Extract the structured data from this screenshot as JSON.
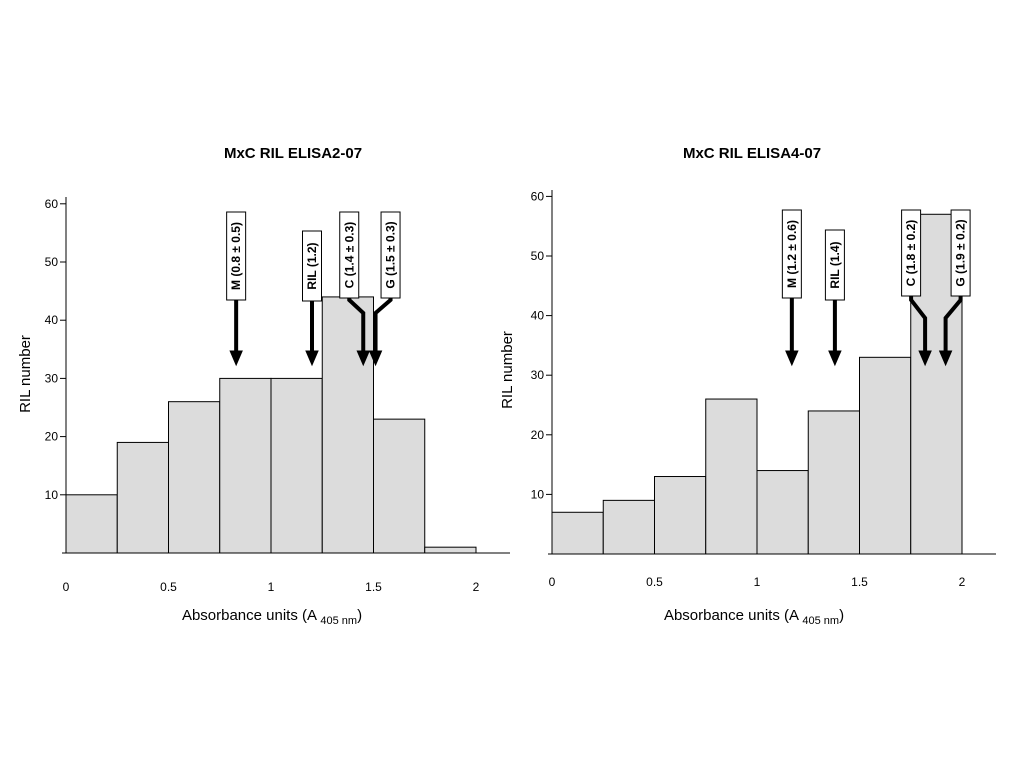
{
  "chart_data": [
    {
      "type": "bar",
      "title": "MxC RIL ELISA2-07",
      "xlabel": "Absorbance units (A",
      "xlabel_sub": "405 nm",
      "xlabel_close": ")",
      "ylabel": "RIL number",
      "xlim": [
        0,
        2.2
      ],
      "ylim": [
        0,
        60
      ],
      "x_ticks": [
        0,
        0.5,
        1,
        1.5,
        2
      ],
      "x_tick_labels": [
        "0",
        "0.5",
        "1",
        "1.5",
        "2"
      ],
      "y_ticks": [
        10,
        20,
        30,
        40,
        50,
        60
      ],
      "y_tick_labels": [
        "10",
        "20",
        "30",
        "40",
        "50",
        "60"
      ],
      "bin_edges": [
        0,
        0.25,
        0.5,
        0.75,
        1.0,
        1.25,
        1.5,
        1.75,
        2.0
      ],
      "values": [
        10,
        19,
        26,
        30,
        30,
        44,
        23,
        1
      ],
      "bar_color": "#dcdcdc",
      "annotations": [
        {
          "label": "M (0.8 ± 0.5)",
          "x": 0.83
        },
        {
          "label": "RIL (1.2)",
          "x": 1.2
        },
        {
          "label": "C (1.4 ± 0.3)",
          "x": 1.45
        },
        {
          "label": "G (1.5 ± 0.3)",
          "x": 1.51
        }
      ]
    },
    {
      "type": "bar",
      "title": "MxC RIL ELISA4-07",
      "xlabel": "Absorbance units (A",
      "xlabel_sub": "405 nm",
      "xlabel_close": ")",
      "ylabel": "RIL number",
      "xlim": [
        0,
        2.2
      ],
      "ylim": [
        0,
        60
      ],
      "x_ticks": [
        0,
        0.5,
        1,
        1.5,
        2
      ],
      "x_tick_labels": [
        "0",
        "0.5",
        "1",
        "1.5",
        "2"
      ],
      "y_ticks": [
        10,
        20,
        30,
        40,
        50,
        60
      ],
      "y_tick_labels": [
        "10",
        "20",
        "30",
        "40",
        "50",
        "60"
      ],
      "bin_edges": [
        0,
        0.25,
        0.5,
        0.75,
        1.0,
        1.25,
        1.5,
        1.75,
        2.0
      ],
      "values": [
        7,
        9,
        13,
        26,
        14,
        24,
        33,
        57
      ],
      "bar_color": "#dcdcdc",
      "annotations": [
        {
          "label": "M (1.2 ± 0.6)",
          "x": 1.17
        },
        {
          "label": "RIL (1.4)",
          "x": 1.38
        },
        {
          "label": "C (1.8 ± 0.2)",
          "x": 1.82
        },
        {
          "label": "G (1.9 ± 0.2)",
          "x": 1.92
        }
      ]
    }
  ]
}
